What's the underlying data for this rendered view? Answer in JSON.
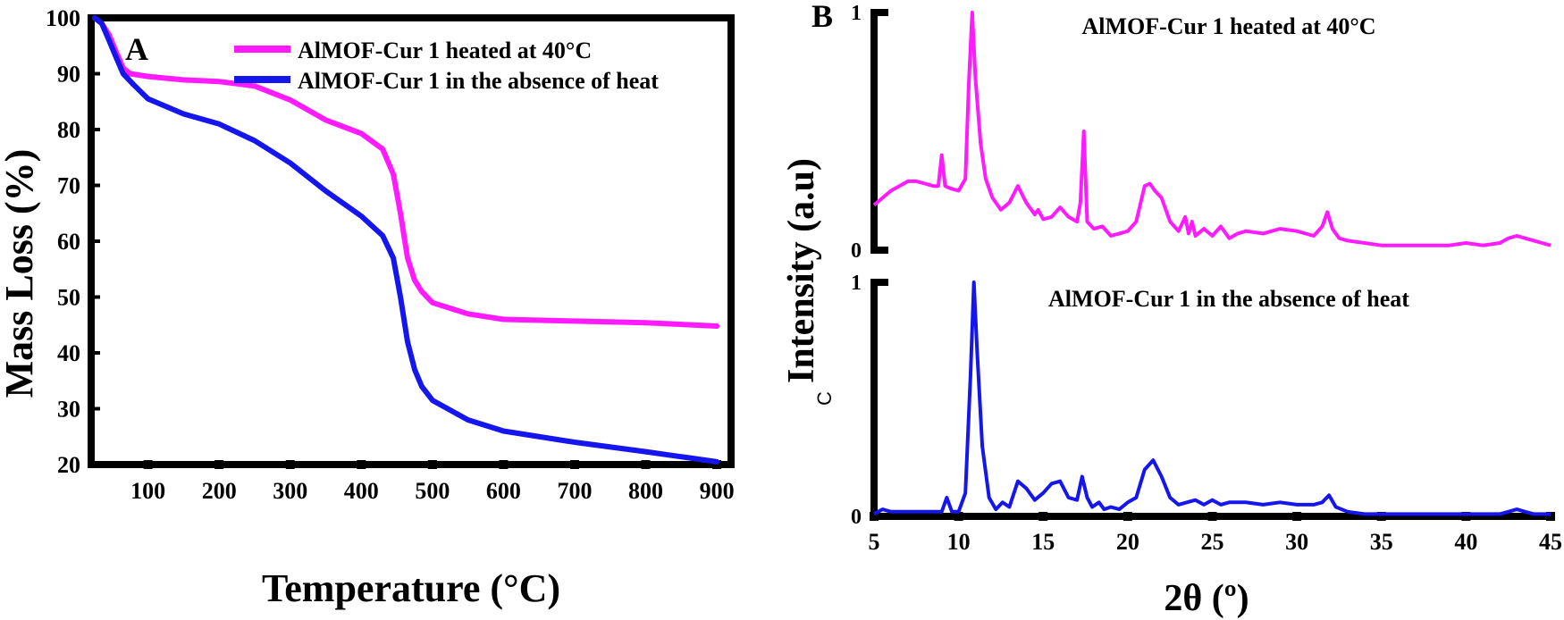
{
  "panels": {
    "A": {
      "letter": "A"
    },
    "B": {
      "letter": "B"
    },
    "C": {
      "letter": "C"
    }
  },
  "chart_data": [
    {
      "id": "tga",
      "type": "line",
      "xlabel": "Temperature (°C)",
      "ylabel": "Mass Loss (%)",
      "xlim": [
        20,
        920
      ],
      "ylim": [
        20,
        100
      ],
      "xticks": [
        100,
        200,
        300,
        400,
        500,
        600,
        700,
        800,
        900
      ],
      "yticks": [
        20,
        30,
        40,
        50,
        60,
        70,
        80,
        90,
        100
      ],
      "legend_position": "top-right",
      "series": [
        {
          "name": "AlMOF-Cur 1 heated at 40°C",
          "color": "#ff1aff",
          "x": [
            25,
            35,
            45,
            55,
            65,
            75,
            100,
            150,
            200,
            250,
            300,
            350,
            400,
            430,
            445,
            455,
            465,
            475,
            485,
            500,
            550,
            600,
            700,
            800,
            900
          ],
          "y": [
            100,
            99,
            97,
            94,
            91,
            90,
            89.5,
            88.9,
            88.6,
            87.8,
            85.3,
            81.7,
            79.3,
            76.5,
            72,
            65,
            57,
            53,
            51,
            49,
            47,
            46,
            45.7,
            45.4,
            44.8
          ]
        },
        {
          "name": "AlMOF-Cur 1 in the absence of heat",
          "color": "#1515ee",
          "x": [
            25,
            35,
            45,
            55,
            65,
            80,
            100,
            150,
            200,
            250,
            300,
            350,
            400,
            430,
            445,
            455,
            465,
            475,
            485,
            500,
            550,
            600,
            700,
            800,
            900
          ],
          "y": [
            100,
            99,
            96,
            93,
            90,
            88,
            85.5,
            82.8,
            81,
            78,
            74,
            69,
            64.5,
            61,
            57,
            50,
            42,
            37,
            34,
            31.5,
            28,
            26,
            24,
            22.3,
            20.5
          ]
        }
      ]
    },
    {
      "id": "xrd",
      "type": "line",
      "xlabel": "2θ (º)",
      "ylabel": "Intensity (a.u)",
      "xlim": [
        5,
        45
      ],
      "xticks": [
        5,
        10,
        15,
        20,
        25,
        30,
        35,
        40,
        45
      ],
      "ylim": [
        0,
        1
      ],
      "yticks": [
        0,
        1
      ],
      "panels": [
        {
          "title": "AlMOF-Cur 1 heated at 40°C",
          "color": "#ff1aff",
          "series": {
            "name": "AlMOF-Cur 1 heated at 40°C",
            "x": [
              5,
              5.5,
              6,
              6.5,
              7,
              7.5,
              8,
              8.5,
              8.8,
              9,
              9.2,
              9.5,
              10,
              10.4,
              10.6,
              10.8,
              11,
              11.3,
              11.6,
              12,
              12.5,
              13,
              13.5,
              14,
              14.5,
              14.7,
              15,
              15.5,
              16,
              16.5,
              17,
              17.2,
              17.4,
              17.6,
              18,
              18.5,
              19,
              19.5,
              20,
              20.5,
              21,
              21.3,
              21.6,
              22,
              22.5,
              23,
              23.4,
              23.6,
              23.8,
              24,
              24.5,
              25,
              25.5,
              26,
              26.5,
              27,
              28,
              29,
              30,
              31,
              31.5,
              31.8,
              32.1,
              32.5,
              33,
              34,
              35,
              36,
              37,
              38,
              39,
              40,
              41,
              42,
              42.5,
              43,
              43.5,
              44,
              44.5,
              45
            ],
            "y": [
              0.19,
              0.22,
              0.25,
              0.27,
              0.29,
              0.29,
              0.28,
              0.27,
              0.27,
              0.4,
              0.27,
              0.26,
              0.25,
              0.3,
              0.7,
              1.0,
              0.72,
              0.45,
              0.3,
              0.22,
              0.17,
              0.2,
              0.27,
              0.2,
              0.15,
              0.17,
              0.13,
              0.14,
              0.18,
              0.14,
              0.12,
              0.2,
              0.5,
              0.12,
              0.09,
              0.1,
              0.06,
              0.07,
              0.08,
              0.12,
              0.27,
              0.28,
              0.25,
              0.22,
              0.12,
              0.08,
              0.14,
              0.07,
              0.12,
              0.06,
              0.09,
              0.06,
              0.1,
              0.05,
              0.07,
              0.08,
              0.07,
              0.09,
              0.08,
              0.06,
              0.1,
              0.16,
              0.09,
              0.05,
              0.04,
              0.03,
              0.02,
              0.02,
              0.02,
              0.02,
              0.02,
              0.03,
              0.02,
              0.03,
              0.05,
              0.06,
              0.05,
              0.04,
              0.03,
              0.02
            ]
          }
        },
        {
          "title": "AlMOF-Cur 1 in the absence of heat",
          "color": "#1515ee",
          "series": {
            "name": "AlMOF-Cur 1 in the absence of heat",
            "x": [
              5,
              5.5,
              6,
              7,
              8,
              9,
              9.3,
              9.6,
              10,
              10.4,
              10.7,
              10.9,
              11.1,
              11.4,
              11.8,
              12.2,
              12.6,
              13,
              13.5,
              14,
              14.5,
              15,
              15.5,
              16,
              16.5,
              17,
              17.3,
              17.6,
              17.9,
              18.3,
              18.6,
              19,
              19.5,
              20,
              20.5,
              21,
              21.5,
              22,
              22.5,
              23,
              23.5,
              24,
              24.5,
              25,
              25.5,
              26,
              27,
              28,
              29,
              30,
              31,
              31.5,
              31.9,
              32.3,
              33,
              34,
              35,
              36,
              38,
              40,
              42,
              42.5,
              43,
              43.5,
              44,
              45
            ],
            "y": [
              0.01,
              0.03,
              0.02,
              0.02,
              0.02,
              0.02,
              0.08,
              0.02,
              0.02,
              0.1,
              0.6,
              1.0,
              0.7,
              0.3,
              0.08,
              0.03,
              0.06,
              0.04,
              0.15,
              0.12,
              0.07,
              0.1,
              0.14,
              0.15,
              0.08,
              0.07,
              0.17,
              0.08,
              0.04,
              0.06,
              0.03,
              0.04,
              0.03,
              0.06,
              0.08,
              0.2,
              0.24,
              0.17,
              0.08,
              0.05,
              0.06,
              0.07,
              0.05,
              0.07,
              0.05,
              0.06,
              0.06,
              0.05,
              0.06,
              0.05,
              0.05,
              0.06,
              0.09,
              0.04,
              0.02,
              0.01,
              0.01,
              0.01,
              0.01,
              0.01,
              0.01,
              0.02,
              0.03,
              0.02,
              0.01,
              0.01
            ]
          }
        }
      ]
    }
  ]
}
